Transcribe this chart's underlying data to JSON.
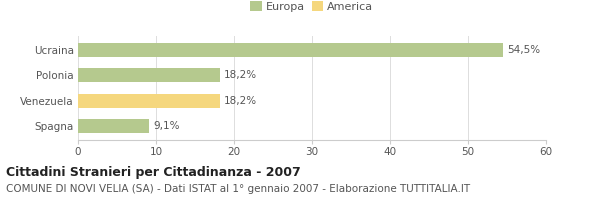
{
  "categories": [
    "Ucraina",
    "Polonia",
    "Venezuela",
    "Spagna"
  ],
  "values": [
    54.5,
    18.2,
    18.2,
    9.1
  ],
  "labels": [
    "54,5%",
    "18,2%",
    "18,2%",
    "9,1%"
  ],
  "bar_colors": [
    "#b5c98e",
    "#b5c98e",
    "#f5d77e",
    "#b5c98e"
  ],
  "legend_items": [
    {
      "label": "Europa",
      "color": "#b5c98e"
    },
    {
      "label": "America",
      "color": "#f5d77e"
    }
  ],
  "xlim": [
    0,
    60
  ],
  "xticks": [
    0,
    10,
    20,
    30,
    40,
    50,
    60
  ],
  "title": "Cittadini Stranieri per Cittadinanza - 2007",
  "subtitle": "COMUNE DI NOVI VELIA (SA) - Dati ISTAT al 1° gennaio 2007 - Elaborazione TUTTITALIA.IT",
  "background_color": "#ffffff",
  "bar_height": 0.55,
  "title_fontsize": 9,
  "subtitle_fontsize": 7.5,
  "label_fontsize": 7.5,
  "tick_fontsize": 7.5,
  "legend_fontsize": 8
}
